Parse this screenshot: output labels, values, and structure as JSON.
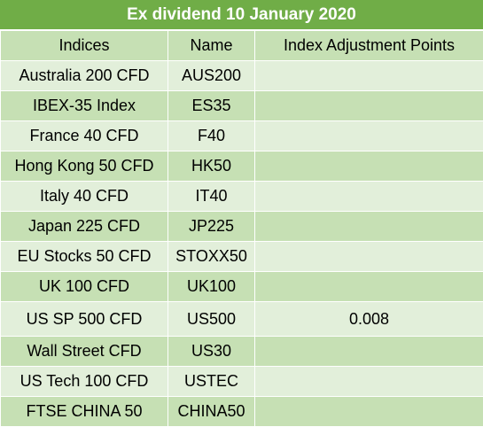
{
  "title": "Ex dividend 10 January 2020",
  "headers": {
    "indices": "Indices",
    "name": "Name",
    "adjustment": "Index Adjustment Points"
  },
  "rows": [
    {
      "index": "Australia 200 CFD",
      "name": "AUS200",
      "points": ""
    },
    {
      "index": "IBEX-35 Index",
      "name": "ES35",
      "points": ""
    },
    {
      "index": "France 40 CFD",
      "name": "F40",
      "points": ""
    },
    {
      "index": "Hong Kong 50 CFD",
      "name": "HK50",
      "points": ""
    },
    {
      "index": "Italy 40 CFD",
      "name": "IT40",
      "points": ""
    },
    {
      "index": "Japan 225 CFD",
      "name": "JP225",
      "points": ""
    },
    {
      "index": "EU Stocks 50 CFD",
      "name": "STOXX50",
      "points": ""
    },
    {
      "index": "UK 100 CFD",
      "name": "UK100",
      "points": ""
    },
    {
      "index": "US SP 500 CFD",
      "name": "US500",
      "points": "0.008"
    },
    {
      "index": "Wall Street CFD",
      "name": "US30",
      "points": ""
    },
    {
      "index": "US Tech 100 CFD",
      "name": "USTEC",
      "points": ""
    },
    {
      "index": "FTSE CHINA 50",
      "name": "CHINA50",
      "points": ""
    }
  ],
  "colors": {
    "title_bg": "#70ad47",
    "band_dark": "#c6e0b4",
    "band_light": "#e2efda"
  }
}
